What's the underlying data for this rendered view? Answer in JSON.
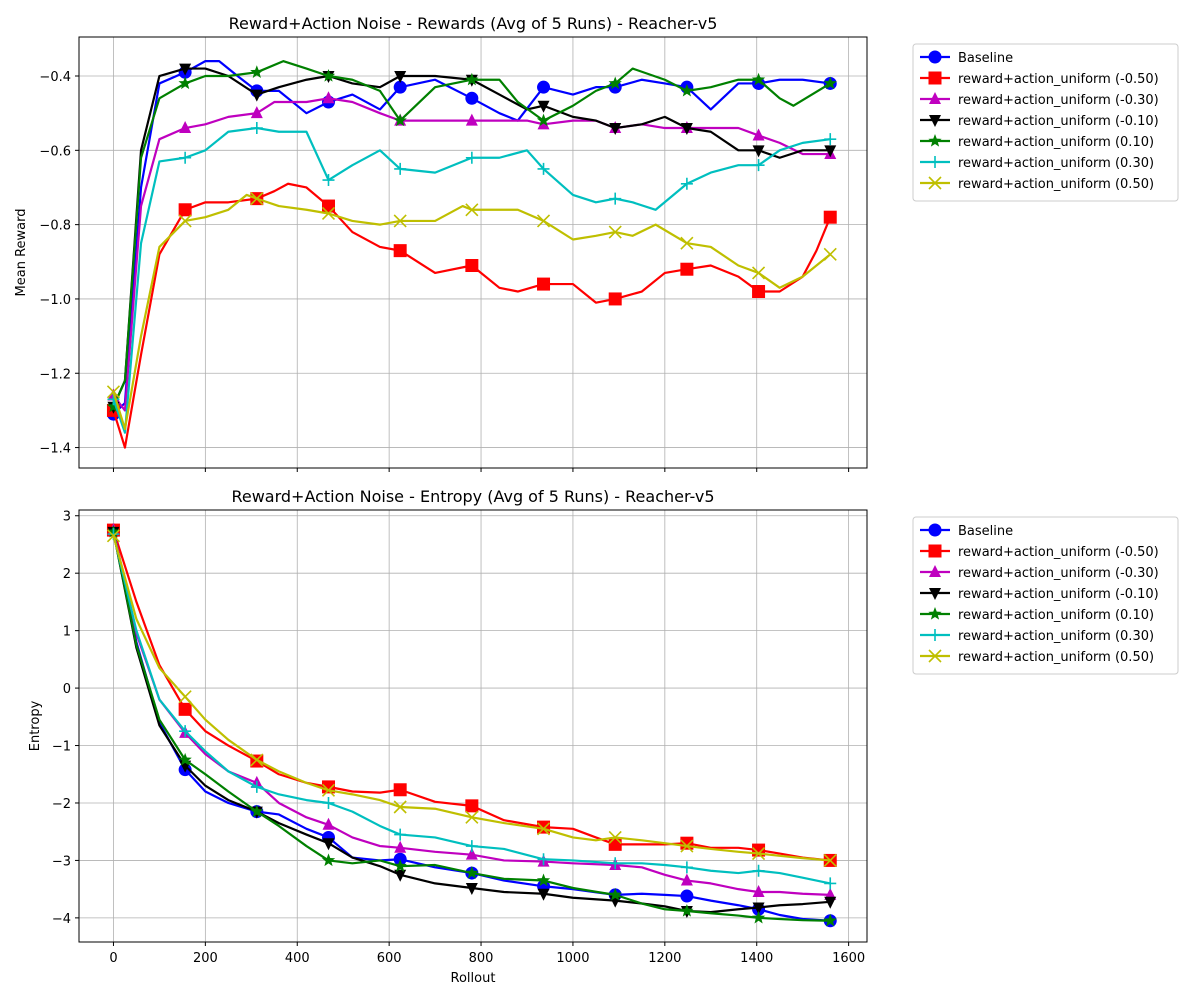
{
  "colors": {
    "Baseline": "#0000ff",
    "reward+action_uniform (-0.50)": "#ff0000",
    "reward+action_uniform (-0.30)": "#bf00bf",
    "reward+action_uniform (-0.10)": "#000000",
    "reward+action_uniform (0.10)": "#008000",
    "reward+action_uniform (0.30)": "#00bfbf",
    "reward+action_uniform (0.50)": "#bfbf00"
  },
  "chart_data": [
    {
      "type": "line",
      "title": "Reward+Action Noise - Rewards (Avg of 5 Runs) - Reacher-v5",
      "xlabel": "",
      "ylabel": "Mean Reward",
      "xlim": [
        -75,
        1640
      ],
      "ylim": [
        -1.455,
        -0.295
      ],
      "xticks": [
        0,
        200,
        400,
        600,
        800,
        1000,
        1200,
        1400,
        1600
      ],
      "xticklabels_shown": false,
      "yticks": [
        -1.4,
        -1.2,
        -1.0,
        -0.8,
        -0.6,
        -0.4
      ],
      "ytick_labels": [
        "−1.4",
        "−1.2",
        "−1.0",
        "−0.8",
        "−0.6",
        "−0.4"
      ],
      "grid": true,
      "legend": "outside-right",
      "marker_x": [
        0,
        156,
        312,
        468,
        624,
        780,
        936,
        1092,
        1248,
        1404,
        1560
      ],
      "series": [
        {
          "name": "Baseline",
          "marker": "circle",
          "x": [
            0,
            25,
            60,
            100,
            156,
            200,
            230,
            270,
            312,
            360,
            420,
            468,
            520,
            580,
            624,
            700,
            780,
            840,
            880,
            936,
            1000,
            1050,
            1092,
            1150,
            1200,
            1248,
            1300,
            1360,
            1404,
            1450,
            1500,
            1560
          ],
          "y": [
            -1.31,
            -1.28,
            -0.7,
            -0.42,
            -0.39,
            -0.36,
            -0.36,
            -0.4,
            -0.44,
            -0.44,
            -0.5,
            -0.47,
            -0.45,
            -0.49,
            -0.43,
            -0.41,
            -0.46,
            -0.5,
            -0.52,
            -0.43,
            -0.45,
            -0.43,
            -0.43,
            -0.41,
            -0.42,
            -0.43,
            -0.49,
            -0.42,
            -0.42,
            -0.41,
            -0.41,
            -0.42
          ]
        },
        {
          "name": "reward+action_uniform (-0.50)",
          "marker": "square",
          "x": [
            0,
            25,
            60,
            100,
            156,
            200,
            250,
            312,
            350,
            380,
            420,
            468,
            520,
            580,
            624,
            700,
            780,
            840,
            880,
            936,
            1000,
            1050,
            1092,
            1150,
            1200,
            1248,
            1300,
            1360,
            1404,
            1450,
            1500,
            1530,
            1560
          ],
          "y": [
            -1.3,
            -1.4,
            -1.15,
            -0.88,
            -0.76,
            -0.74,
            -0.74,
            -0.73,
            -0.71,
            -0.69,
            -0.7,
            -0.75,
            -0.82,
            -0.86,
            -0.87,
            -0.93,
            -0.91,
            -0.97,
            -0.98,
            -0.96,
            -0.96,
            -1.01,
            -1.0,
            -0.98,
            -0.93,
            -0.92,
            -0.91,
            -0.94,
            -0.98,
            -0.98,
            -0.94,
            -0.87,
            -0.78
          ]
        },
        {
          "name": "reward+action_uniform (-0.30)",
          "marker": "triangle-up",
          "x": [
            0,
            25,
            60,
            100,
            156,
            200,
            250,
            312,
            350,
            420,
            468,
            520,
            580,
            624,
            700,
            780,
            840,
            900,
            936,
            1000,
            1050,
            1092,
            1150,
            1200,
            1248,
            1300,
            1360,
            1404,
            1450,
            1500,
            1560
          ],
          "y": [
            -1.26,
            -1.3,
            -0.75,
            -0.57,
            -0.54,
            -0.53,
            -0.51,
            -0.5,
            -0.47,
            -0.47,
            -0.46,
            -0.47,
            -0.5,
            -0.52,
            -0.52,
            -0.52,
            -0.52,
            -0.52,
            -0.53,
            -0.52,
            -0.52,
            -0.54,
            -0.53,
            -0.54,
            -0.54,
            -0.54,
            -0.54,
            -0.56,
            -0.58,
            -0.61,
            -0.61
          ]
        },
        {
          "name": "reward+action_uniform (-0.10)",
          "marker": "triangle-down",
          "x": [
            0,
            25,
            60,
            100,
            156,
            200,
            250,
            312,
            360,
            420,
            468,
            520,
            580,
            624,
            700,
            780,
            840,
            900,
            936,
            1000,
            1050,
            1092,
            1150,
            1200,
            1248,
            1300,
            1360,
            1404,
            1450,
            1500,
            1560
          ],
          "y": [
            -1.29,
            -1.22,
            -0.6,
            -0.4,
            -0.38,
            -0.38,
            -0.4,
            -0.45,
            -0.43,
            -0.41,
            -0.4,
            -0.42,
            -0.43,
            -0.4,
            -0.4,
            -0.41,
            -0.45,
            -0.49,
            -0.48,
            -0.51,
            -0.52,
            -0.54,
            -0.53,
            -0.51,
            -0.54,
            -0.55,
            -0.6,
            -0.6,
            -0.62,
            -0.6,
            -0.6
          ]
        },
        {
          "name": "reward+action_uniform (0.10)",
          "marker": "star",
          "x": [
            0,
            25,
            60,
            100,
            156,
            200,
            250,
            312,
            370,
            420,
            468,
            520,
            580,
            624,
            700,
            780,
            840,
            880,
            936,
            1000,
            1050,
            1092,
            1130,
            1200,
            1248,
            1300,
            1360,
            1404,
            1450,
            1480,
            1560
          ],
          "y": [
            -1.29,
            -1.22,
            -0.62,
            -0.46,
            -0.42,
            -0.4,
            -0.4,
            -0.39,
            -0.36,
            -0.38,
            -0.4,
            -0.41,
            -0.44,
            -0.52,
            -0.43,
            -0.41,
            -0.41,
            -0.47,
            -0.52,
            -0.48,
            -0.44,
            -0.42,
            -0.38,
            -0.41,
            -0.44,
            -0.43,
            -0.41,
            -0.41,
            -0.46,
            -0.48,
            -0.42
          ]
        },
        {
          "name": "reward+action_uniform (0.30)",
          "marker": "plus",
          "x": [
            0,
            25,
            60,
            100,
            156,
            200,
            250,
            312,
            360,
            420,
            468,
            520,
            580,
            624,
            700,
            780,
            840,
            900,
            936,
            1000,
            1050,
            1092,
            1130,
            1180,
            1248,
            1300,
            1360,
            1404,
            1450,
            1500,
            1560
          ],
          "y": [
            -1.27,
            -1.36,
            -0.85,
            -0.63,
            -0.62,
            -0.6,
            -0.55,
            -0.54,
            -0.55,
            -0.55,
            -0.68,
            -0.64,
            -0.6,
            -0.65,
            -0.66,
            -0.62,
            -0.62,
            -0.6,
            -0.65,
            -0.72,
            -0.74,
            -0.73,
            -0.74,
            -0.76,
            -0.69,
            -0.66,
            -0.64,
            -0.64,
            -0.6,
            -0.58,
            -0.57
          ]
        },
        {
          "name": "reward+action_uniform (0.50)",
          "marker": "x",
          "x": [
            0,
            25,
            60,
            100,
            156,
            200,
            250,
            290,
            312,
            360,
            420,
            468,
            520,
            580,
            624,
            700,
            760,
            780,
            840,
            880,
            936,
            1000,
            1050,
            1092,
            1130,
            1180,
            1248,
            1300,
            1360,
            1404,
            1450,
            1500,
            1530,
            1560
          ],
          "y": [
            -1.25,
            -1.35,
            -1.1,
            -0.86,
            -0.79,
            -0.78,
            -0.76,
            -0.72,
            -0.73,
            -0.75,
            -0.76,
            -0.77,
            -0.79,
            -0.8,
            -0.79,
            -0.79,
            -0.75,
            -0.76,
            -0.76,
            -0.76,
            -0.79,
            -0.84,
            -0.83,
            -0.82,
            -0.83,
            -0.8,
            -0.85,
            -0.86,
            -0.91,
            -0.93,
            -0.97,
            -0.94,
            -0.91,
            -0.88
          ]
        }
      ]
    },
    {
      "type": "line",
      "title": "Reward+Action Noise - Entropy (Avg of 5 Runs) - Reacher-v5",
      "xlabel": "Rollout",
      "ylabel": "Entropy",
      "xlim": [
        -75,
        1640
      ],
      "ylim": [
        -4.42,
        3.1
      ],
      "xticks": [
        0,
        200,
        400,
        600,
        800,
        1000,
        1200,
        1400,
        1600
      ],
      "xticklabels_shown": true,
      "xtick_labels": [
        "0",
        "200",
        "400",
        "600",
        "800",
        "1000",
        "1200",
        "1400",
        "1600"
      ],
      "yticks": [
        -4,
        -3,
        -2,
        -1,
        0,
        1,
        2,
        3
      ],
      "ytick_labels": [
        "−4",
        "−3",
        "−2",
        "−1",
        "0",
        "1",
        "2",
        "3"
      ],
      "grid": true,
      "legend": "outside-right",
      "marker_x": [
        0,
        156,
        312,
        468,
        624,
        780,
        936,
        1092,
        1248,
        1404,
        1560
      ],
      "series": [
        {
          "name": "Baseline",
          "marker": "circle",
          "x": [
            0,
            50,
            100,
            156,
            200,
            250,
            312,
            360,
            420,
            468,
            520,
            580,
            624,
            700,
            780,
            850,
            936,
            1000,
            1092,
            1150,
            1200,
            1248,
            1300,
            1360,
            1404,
            1450,
            1500,
            1560
          ],
          "y": [
            2.75,
            0.8,
            -0.6,
            -1.42,
            -1.8,
            -2.0,
            -2.15,
            -2.2,
            -2.45,
            -2.6,
            -2.95,
            -3.0,
            -2.98,
            -3.12,
            -3.22,
            -3.35,
            -3.45,
            -3.5,
            -3.6,
            -3.58,
            -3.6,
            -3.62,
            -3.7,
            -3.78,
            -3.85,
            -3.95,
            -4.02,
            -4.05
          ]
        },
        {
          "name": "reward+action_uniform (-0.50)",
          "marker": "square",
          "x": [
            0,
            50,
            100,
            156,
            200,
            250,
            312,
            360,
            420,
            468,
            520,
            580,
            624,
            700,
            780,
            850,
            936,
            1000,
            1050,
            1092,
            1150,
            1200,
            1248,
            1300,
            1360,
            1404,
            1450,
            1500,
            1560
          ],
          "y": [
            2.75,
            1.5,
            0.4,
            -0.37,
            -0.75,
            -1.0,
            -1.27,
            -1.5,
            -1.65,
            -1.72,
            -1.8,
            -1.82,
            -1.77,
            -1.98,
            -2.05,
            -2.3,
            -2.42,
            -2.45,
            -2.6,
            -2.72,
            -2.72,
            -2.72,
            -2.7,
            -2.78,
            -2.78,
            -2.82,
            -2.88,
            -2.95,
            -3.0
          ]
        },
        {
          "name": "reward+action_uniform (-0.30)",
          "marker": "triangle-up",
          "x": [
            0,
            50,
            100,
            156,
            200,
            250,
            312,
            360,
            420,
            468,
            520,
            580,
            624,
            700,
            780,
            850,
            936,
            1000,
            1092,
            1150,
            1200,
            1248,
            1300,
            1360,
            1404,
            1450,
            1500,
            1560
          ],
          "y": [
            2.75,
            0.95,
            -0.2,
            -0.78,
            -1.15,
            -1.45,
            -1.65,
            -2.0,
            -2.25,
            -2.38,
            -2.6,
            -2.75,
            -2.78,
            -2.85,
            -2.9,
            -3.0,
            -3.02,
            -3.05,
            -3.08,
            -3.12,
            -3.25,
            -3.35,
            -3.4,
            -3.5,
            -3.55,
            -3.55,
            -3.58,
            -3.6
          ]
        },
        {
          "name": "reward+action_uniform (-0.10)",
          "marker": "triangle-down",
          "x": [
            0,
            50,
            100,
            156,
            200,
            250,
            312,
            360,
            420,
            468,
            520,
            580,
            624,
            700,
            780,
            850,
            936,
            1000,
            1092,
            1150,
            1200,
            1248,
            1300,
            1360,
            1404,
            1450,
            1500,
            1560
          ],
          "y": [
            2.72,
            0.7,
            -0.65,
            -1.35,
            -1.7,
            -1.95,
            -2.15,
            -2.35,
            -2.55,
            -2.7,
            -2.95,
            -3.1,
            -3.25,
            -3.4,
            -3.48,
            -3.55,
            -3.58,
            -3.65,
            -3.7,
            -3.75,
            -3.8,
            -3.88,
            -3.9,
            -3.85,
            -3.82,
            -3.78,
            -3.76,
            -3.72
          ]
        },
        {
          "name": "reward+action_uniform (0.10)",
          "marker": "star",
          "x": [
            0,
            50,
            100,
            156,
            200,
            250,
            312,
            360,
            420,
            468,
            520,
            580,
            624,
            700,
            780,
            850,
            936,
            1000,
            1092,
            1150,
            1200,
            1248,
            1300,
            1360,
            1404,
            1450,
            1500,
            1560
          ],
          "y": [
            2.72,
            0.75,
            -0.55,
            -1.25,
            -1.5,
            -1.8,
            -2.15,
            -2.4,
            -2.75,
            -3.0,
            -3.05,
            -3.0,
            -3.1,
            -3.08,
            -3.22,
            -3.32,
            -3.35,
            -3.48,
            -3.6,
            -3.75,
            -3.85,
            -3.88,
            -3.92,
            -3.96,
            -4.0,
            -4.02,
            -4.04,
            -4.05
          ]
        },
        {
          "name": "reward+action_uniform (0.30)",
          "marker": "plus",
          "x": [
            0,
            50,
            100,
            156,
            200,
            250,
            312,
            360,
            420,
            468,
            520,
            580,
            624,
            700,
            780,
            850,
            936,
            1000,
            1092,
            1150,
            1200,
            1248,
            1300,
            1360,
            1404,
            1450,
            1500,
            1560
          ],
          "y": [
            2.68,
            1.0,
            -0.2,
            -0.75,
            -1.1,
            -1.45,
            -1.72,
            -1.85,
            -1.95,
            -2.0,
            -2.15,
            -2.4,
            -2.55,
            -2.6,
            -2.75,
            -2.8,
            -2.98,
            -3.0,
            -3.05,
            -3.05,
            -3.08,
            -3.12,
            -3.18,
            -3.22,
            -3.18,
            -3.22,
            -3.3,
            -3.4
          ]
        },
        {
          "name": "reward+action_uniform (0.50)",
          "marker": "x",
          "x": [
            0,
            50,
            100,
            156,
            200,
            250,
            312,
            360,
            420,
            468,
            520,
            580,
            624,
            700,
            780,
            850,
            936,
            1000,
            1050,
            1092,
            1150,
            1200,
            1248,
            1300,
            1360,
            1404,
            1450,
            1500,
            1560
          ],
          "y": [
            2.65,
            1.2,
            0.35,
            -0.15,
            -0.55,
            -0.9,
            -1.25,
            -1.45,
            -1.65,
            -1.78,
            -1.85,
            -1.95,
            -2.07,
            -2.1,
            -2.25,
            -2.35,
            -2.45,
            -2.6,
            -2.65,
            -2.6,
            -2.65,
            -2.7,
            -2.75,
            -2.8,
            -2.85,
            -2.88,
            -2.92,
            -2.96,
            -3.0
          ]
        }
      ]
    }
  ]
}
